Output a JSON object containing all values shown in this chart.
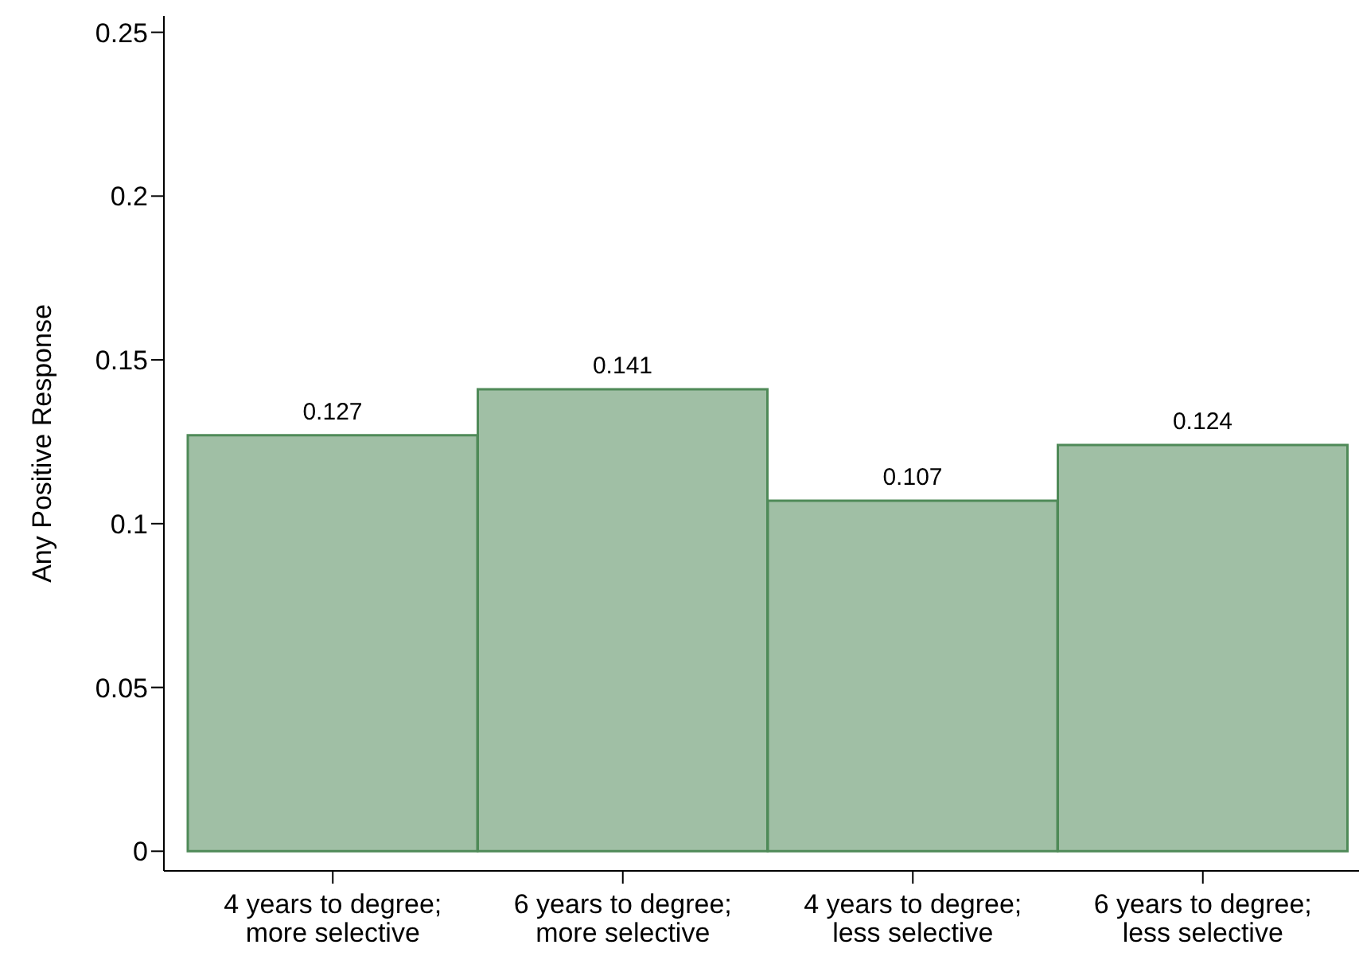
{
  "chart_data": {
    "type": "bar",
    "ylabel": "Any Positive Response",
    "categories": [
      "4 years to degree;\nmore selective",
      "6 years to degree;\nmore selective",
      "4 years to degree;\nless selective",
      "6 years to degree;\nless selective"
    ],
    "values": [
      0.127,
      0.141,
      0.107,
      0.124
    ],
    "color": "#a0bfa5",
    "ylim": [
      -0.006,
      0.255
    ],
    "yticks": [
      0,
      0.05,
      0.1,
      0.15,
      0.2,
      0.25
    ],
    "data_labels": true,
    "grid": false,
    "legend": false
  }
}
